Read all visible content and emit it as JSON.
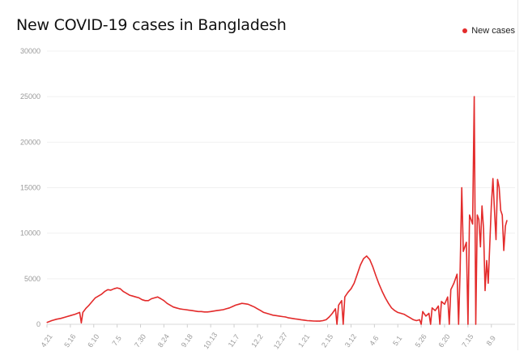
{
  "chart_data": {
    "type": "line",
    "title": "New COVID-19 cases in Bangladesh",
    "xlabel": "",
    "ylabel": "",
    "ylim": [
      0,
      30000
    ],
    "yticks": [
      "0",
      "5000",
      "10000",
      "15000",
      "20000",
      "25000",
      "30000"
    ],
    "grid": true,
    "legend": "top-right",
    "categories": [
      "4.21",
      "5.16",
      "6.10",
      "7.5",
      "7.30",
      "8.24",
      "9.18",
      "10.13",
      "11.7",
      "12.2",
      "12.27",
      "1.21",
      "2.15",
      "3.12",
      "4.6",
      "5.1",
      "5.26",
      "6.20",
      "7.15",
      "8.9"
    ],
    "series": [
      {
        "name": "New cases",
        "color": "#e32b2b",
        "points": [
          [
            0,
            200
          ],
          [
            3,
            400
          ],
          [
            6,
            550
          ],
          [
            9,
            650
          ],
          [
            12,
            800
          ],
          [
            15,
            950
          ],
          [
            18,
            1100
          ],
          [
            21,
            1300
          ],
          [
            22,
            150
          ],
          [
            23,
            1300
          ],
          [
            25,
            1750
          ],
          [
            27,
            2100
          ],
          [
            29,
            2500
          ],
          [
            31,
            2900
          ],
          [
            33,
            3100
          ],
          [
            35,
            3300
          ],
          [
            37,
            3600
          ],
          [
            39,
            3800
          ],
          [
            41,
            3750
          ],
          [
            43,
            3900
          ],
          [
            45,
            4000
          ],
          [
            47,
            3900
          ],
          [
            49,
            3600
          ],
          [
            51,
            3400
          ],
          [
            53,
            3200
          ],
          [
            55,
            3100
          ],
          [
            57,
            3000
          ],
          [
            59,
            2900
          ],
          [
            61,
            2700
          ],
          [
            63,
            2600
          ],
          [
            65,
            2600
          ],
          [
            67,
            2800
          ],
          [
            69,
            2900
          ],
          [
            71,
            3000
          ],
          [
            73,
            2800
          ],
          [
            75,
            2600
          ],
          [
            77,
            2300
          ],
          [
            79,
            2100
          ],
          [
            81,
            1900
          ],
          [
            83,
            1800
          ],
          [
            85,
            1700
          ],
          [
            87,
            1650
          ],
          [
            89,
            1600
          ],
          [
            91,
            1550
          ],
          [
            93,
            1500
          ],
          [
            95,
            1450
          ],
          [
            97,
            1400
          ],
          [
            99,
            1400
          ],
          [
            101,
            1350
          ],
          [
            103,
            1350
          ],
          [
            105,
            1400
          ],
          [
            107,
            1450
          ],
          [
            109,
            1500
          ],
          [
            111,
            1550
          ],
          [
            113,
            1600
          ],
          [
            115,
            1700
          ],
          [
            117,
            1800
          ],
          [
            119,
            1950
          ],
          [
            121,
            2100
          ],
          [
            123,
            2200
          ],
          [
            125,
            2300
          ],
          [
            127,
            2250
          ],
          [
            129,
            2200
          ],
          [
            131,
            2050
          ],
          [
            133,
            1900
          ],
          [
            135,
            1700
          ],
          [
            137,
            1500
          ],
          [
            139,
            1300
          ],
          [
            141,
            1200
          ],
          [
            143,
            1100
          ],
          [
            145,
            1000
          ],
          [
            147,
            950
          ],
          [
            149,
            900
          ],
          [
            151,
            850
          ],
          [
            153,
            800
          ],
          [
            155,
            700
          ],
          [
            157,
            650
          ],
          [
            159,
            600
          ],
          [
            161,
            550
          ],
          [
            163,
            500
          ],
          [
            165,
            450
          ],
          [
            167,
            400
          ],
          [
            169,
            380
          ],
          [
            171,
            360
          ],
          [
            173,
            350
          ],
          [
            175,
            350
          ],
          [
            177,
            400
          ],
          [
            179,
            500
          ],
          [
            181,
            800
          ],
          [
            183,
            1200
          ],
          [
            185,
            1700
          ],
          [
            186,
            0
          ],
          [
            187,
            2100
          ],
          [
            189,
            2600
          ],
          [
            190,
            0
          ],
          [
            191,
            3000
          ],
          [
            193,
            3500
          ],
          [
            195,
            3900
          ],
          [
            197,
            4500
          ],
          [
            199,
            5500
          ],
          [
            201,
            6500
          ],
          [
            203,
            7200
          ],
          [
            205,
            7500
          ],
          [
            207,
            7100
          ],
          [
            209,
            6300
          ],
          [
            211,
            5300
          ],
          [
            213,
            4400
          ],
          [
            215,
            3600
          ],
          [
            217,
            2900
          ],
          [
            219,
            2300
          ],
          [
            221,
            1800
          ],
          [
            223,
            1500
          ],
          [
            225,
            1300
          ],
          [
            227,
            1200
          ],
          [
            229,
            1100
          ],
          [
            231,
            900
          ],
          [
            233,
            700
          ],
          [
            235,
            500
          ],
          [
            237,
            400
          ],
          [
            239,
            500
          ],
          [
            240,
            0
          ],
          [
            241,
            1400
          ],
          [
            243,
            900
          ],
          [
            245,
            1200
          ],
          [
            246,
            0
          ],
          [
            247,
            1800
          ],
          [
            249,
            1500
          ],
          [
            251,
            2000
          ],
          [
            252,
            0
          ],
          [
            253,
            2500
          ],
          [
            255,
            2200
          ],
          [
            257,
            3000
          ],
          [
            258,
            0
          ],
          [
            259,
            3800
          ],
          [
            261,
            4500
          ],
          [
            263,
            5500
          ],
          [
            264,
            0
          ],
          [
            265,
            6000
          ],
          [
            266,
            15000
          ],
          [
            267,
            8000
          ],
          [
            269,
            9000
          ],
          [
            270,
            0
          ],
          [
            271,
            12000
          ],
          [
            273,
            11000
          ],
          [
            274,
            25000
          ],
          [
            275,
            0
          ],
          [
            276,
            12000
          ],
          [
            277,
            11500
          ],
          [
            278,
            8500
          ],
          [
            279,
            13000
          ],
          [
            280,
            10500
          ],
          [
            281,
            3700
          ],
          [
            282,
            7000
          ],
          [
            283,
            4500
          ],
          [
            285,
            13000
          ],
          [
            286,
            16000
          ],
          [
            287,
            12500
          ],
          [
            288,
            9300
          ],
          [
            289,
            15900
          ],
          [
            290,
            15000
          ],
          [
            291,
            12500
          ],
          [
            292,
            12000
          ],
          [
            293,
            8100
          ],
          [
            294,
            10800
          ],
          [
            295,
            11400
          ]
        ]
      }
    ],
    "x_tick_indices": [
      0,
      15,
      30,
      45,
      60,
      75,
      90,
      105,
      120,
      135,
      150,
      165,
      180,
      195,
      210,
      225,
      240,
      255,
      270,
      285
    ],
    "x_max_index": 295
  }
}
